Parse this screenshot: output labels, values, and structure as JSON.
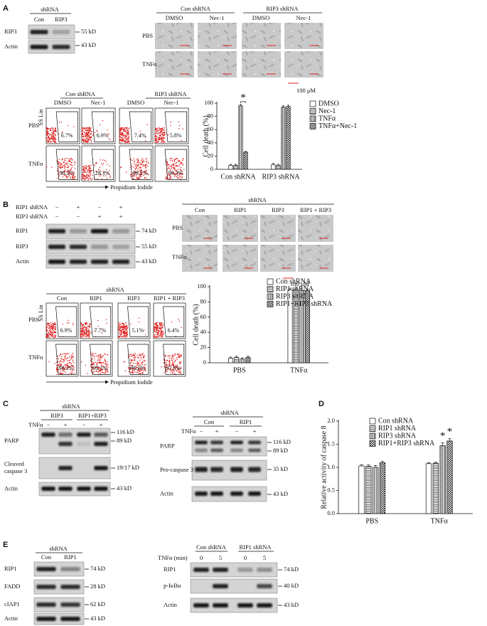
{
  "panels": {
    "A": {
      "letter": "A",
      "blot": {
        "header": "shRNA",
        "lanes": [
          "Con",
          "RIP3"
        ],
        "rows": [
          "RIP3",
          "Actin"
        ],
        "sizes": [
          "55 kD",
          "43 kD"
        ]
      },
      "microscopy": {
        "groups": [
          "Con shRNA",
          "RIP3 shRNA"
        ],
        "lanes": [
          "DMSO",
          "Nec-1",
          "DMSO",
          "Nec-1"
        ],
        "rows": [
          "PBS",
          "TNFα"
        ],
        "scale": "100 μM"
      },
      "flow": {
        "groups": [
          "Con shRNA",
          "RIP3 shRNA"
        ],
        "lanes": [
          "DMSO",
          "Nec-1",
          "DMSO",
          "Nec-1"
        ],
        "rows": [
          "PBS",
          "TNFα"
        ],
        "y_label": "SS Lin",
        "x_label": "Propidium Iodide",
        "gates": [
          [
            "6.7%",
            "6.9%",
            "7.4%",
            "5.8%"
          ],
          [
            "99.3%",
            "28.3%",
            "99.1%",
            "99.3%"
          ]
        ]
      }
    },
    "B": {
      "letter": "B",
      "blot": {
        "conditions": [
          {
            "name": "RIP1 shRNA",
            "signs": [
              "−",
              "+",
              "−",
              "+"
            ]
          },
          {
            "name": "RIP3 shRNA",
            "signs": [
              "−",
              "−",
              "+",
              "+"
            ]
          }
        ],
        "rows": [
          "RIP1",
          "RIP3",
          "Actin"
        ],
        "sizes": [
          "74 kD",
          "55 kD",
          "43 kD"
        ]
      },
      "microscopy": {
        "header": "shRNA",
        "lanes": [
          "Con",
          "RIP1",
          "RIP3",
          "RIP1 + RIP3"
        ],
        "rows": [
          "PBS",
          "TNFα"
        ],
        "scale": "100 μM"
      },
      "flow": {
        "header": "shRNA",
        "lanes": [
          "Con",
          "RIP1",
          "RIP3",
          "RIP1 + RIP3"
        ],
        "rows": [
          "PBS",
          "TNFα"
        ],
        "y_label": "SS Lin",
        "x_label": "Propidium Iodide",
        "gates": [
          [
            "6.9%",
            "7.7%",
            "5.1%",
            "6.4%"
          ],
          [
            "98.2%",
            "99.1%",
            "96.0%",
            "97.9%"
          ]
        ]
      }
    },
    "C": {
      "letter": "C",
      "left": {
        "header": "shRNA",
        "groups": [
          "RIP3",
          "RIP1+RIP3"
        ],
        "treatment": "TNFα",
        "signs": [
          "−",
          "+",
          "−",
          "+"
        ],
        "rows": [
          {
            "label": [
              "PARP"
            ],
            "sizes": [
              "116 kD",
              "89 kD"
            ]
          },
          {
            "label": [
              "Cleaved",
              "caspase 3"
            ],
            "sizes": [
              "19/17 kD"
            ]
          },
          {
            "label": [
              "Actin"
            ],
            "sizes": [
              "43 kD"
            ]
          }
        ]
      },
      "right": {
        "header": "shRNA",
        "groups": [
          "Con",
          "RIP1"
        ],
        "treatment": "TNFα",
        "signs": [
          "−",
          "+",
          "−",
          "+"
        ],
        "rows": [
          {
            "label": [
              "PARP"
            ],
            "sizes": [
              "116 kD",
              "89 kD"
            ]
          },
          {
            "label": [
              "Pro-caspase 3"
            ],
            "sizes": [
              "35 kD"
            ]
          },
          {
            "label": [
              "Actin"
            ],
            "sizes": [
              "43 kD"
            ]
          }
        ]
      }
    },
    "D": {
      "letter": "D"
    },
    "E": {
      "letter": "E",
      "left": {
        "header": "shRNA",
        "lanes": [
          "Con",
          "RIP1"
        ],
        "rows": [
          {
            "label": "RIP1",
            "size": "74 kD"
          },
          {
            "label": "FADD",
            "size": "28 kD"
          },
          {
            "label": "cIAP1",
            "size": "62 kD"
          },
          {
            "label": "Actin",
            "size": "43 kD"
          }
        ]
      },
      "right": {
        "treatment": "TNFα (min)",
        "groups": [
          "Con shRNA",
          "RIP1 shRNA"
        ],
        "times": [
          "0",
          "5",
          "0",
          "5"
        ],
        "rows": [
          {
            "label": "RIP1",
            "size": "74 kD"
          },
          {
            "label": "p-IκBα",
            "size": "40 kD"
          },
          {
            "label": "Actin",
            "size": "43 kD"
          }
        ]
      }
    }
  },
  "chart_data": [
    {
      "type": "bar",
      "y_label": "Cell death (%)",
      "categories": [
        "Con shRNA",
        "RIP3 shRNA"
      ],
      "ylim": [
        0,
        100
      ],
      "yticks": [
        0,
        20,
        40,
        60,
        80,
        100
      ],
      "series": [
        {
          "name": "DMSO",
          "color": "#ffffff",
          "pattern": "none",
          "values": [
            6,
            7
          ],
          "errors": [
            1.5,
            2
          ]
        },
        {
          "name": "Nec-1",
          "color": "#ffffff",
          "pattern": "horizontal",
          "values": [
            6,
            6
          ],
          "errors": [
            1.5,
            1.5
          ]
        },
        {
          "name": "TNFα",
          "color": "#ffffff",
          "pattern": "vertical",
          "values": [
            96,
            94
          ],
          "errors": [
            2,
            2
          ]
        },
        {
          "name": "TNFα+Nec-1",
          "color": "#ffffff",
          "pattern": "checker",
          "values": [
            26,
            95
          ],
          "errors": [
            1,
            2
          ]
        }
      ],
      "annotations": [
        "*"
      ]
    },
    {
      "type": "bar",
      "y_label": "Cell death (%)",
      "categories": [
        "PBS",
        "TNFα"
      ],
      "ylim": [
        0,
        100
      ],
      "yticks": [
        0,
        20,
        40,
        60,
        80,
        100
      ],
      "series": [
        {
          "name": "Con shRNA",
          "color": "#ffffff",
          "pattern": "none",
          "values": [
            6,
            96
          ],
          "errors": [
            1.5,
            2
          ]
        },
        {
          "name": "RIP1 shRNA",
          "color": "#ffffff",
          "pattern": "horizontal",
          "values": [
            7,
            96
          ],
          "errors": [
            1.5,
            2
          ]
        },
        {
          "name": "RIP3 shRNA",
          "color": "#ffffff",
          "pattern": "vertical",
          "values": [
            5,
            95
          ],
          "errors": [
            1.5,
            2
          ]
        },
        {
          "name": "RIP1+RIP3 shRNA",
          "color": "#ffffff",
          "pattern": "checker",
          "values": [
            7,
            95
          ],
          "errors": [
            1.5,
            2
          ]
        }
      ],
      "annotations": []
    },
    {
      "type": "bar",
      "y_label": "Relative activity of caspase 8",
      "categories": [
        "PBS",
        "TNFα"
      ],
      "ylim": [
        0,
        2
      ],
      "yticks": [
        {
          "value": 0,
          "label": "0.0"
        },
        0.5,
        {
          "value": 1,
          "label": "1.0"
        },
        1.5,
        {
          "value": 2,
          "label": "2.0"
        }
      ],
      "series": [
        {
          "name": "Con shRNA",
          "color": "#ffffff",
          "pattern": "none",
          "values": [
            1.03,
            1.08
          ],
          "errors": [
            0.03,
            0.02
          ]
        },
        {
          "name": "RIP1 shRNA",
          "color": "#ffffff",
          "pattern": "horizontal",
          "values": [
            1.02,
            1.09
          ],
          "errors": [
            0.03,
            0.02
          ]
        },
        {
          "name": "RIP3 shRNA",
          "color": "#ffffff",
          "pattern": "vertical",
          "values": [
            1,
            1.47
          ],
          "errors": [
            0.04,
            0.06
          ]
        },
        {
          "name": "RIP1+RIP3 shRNA",
          "color": "#ffffff",
          "pattern": "checker",
          "values": [
            1.1,
            1.57
          ],
          "errors": [
            0.03,
            0.05
          ]
        }
      ],
      "annotations": [
        "*",
        "*"
      ]
    }
  ]
}
